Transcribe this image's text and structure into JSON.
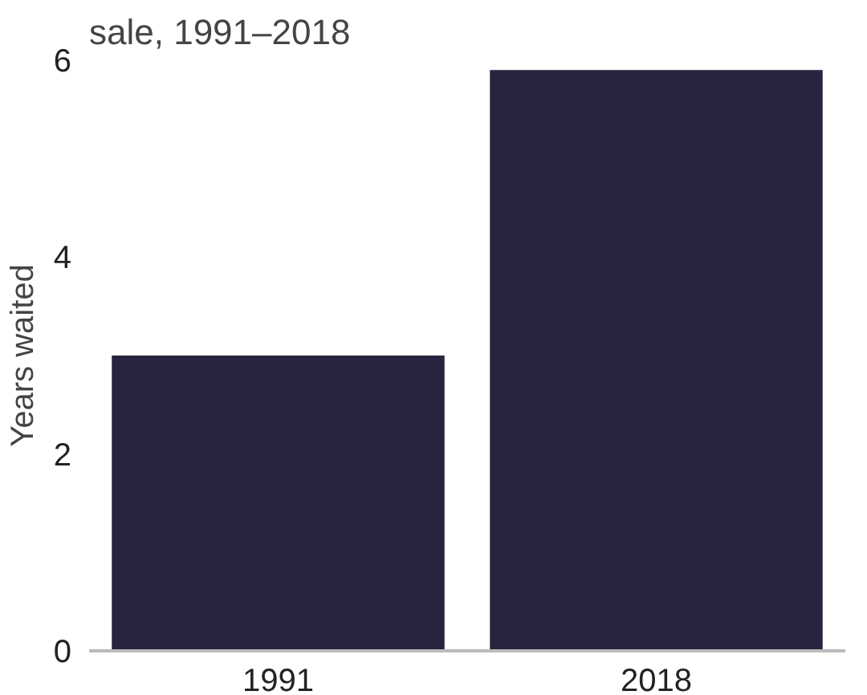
{
  "chart_data": {
    "type": "bar",
    "title": "sale, 1991–2018",
    "ylabel": "Years waited",
    "categories": [
      "1991",
      "2018"
    ],
    "values": [
      3.0,
      5.9
    ],
    "color": "#29233f",
    "ylim": [
      0,
      6
    ],
    "yticks": [
      0,
      2,
      4,
      6
    ],
    "grid": false
  }
}
